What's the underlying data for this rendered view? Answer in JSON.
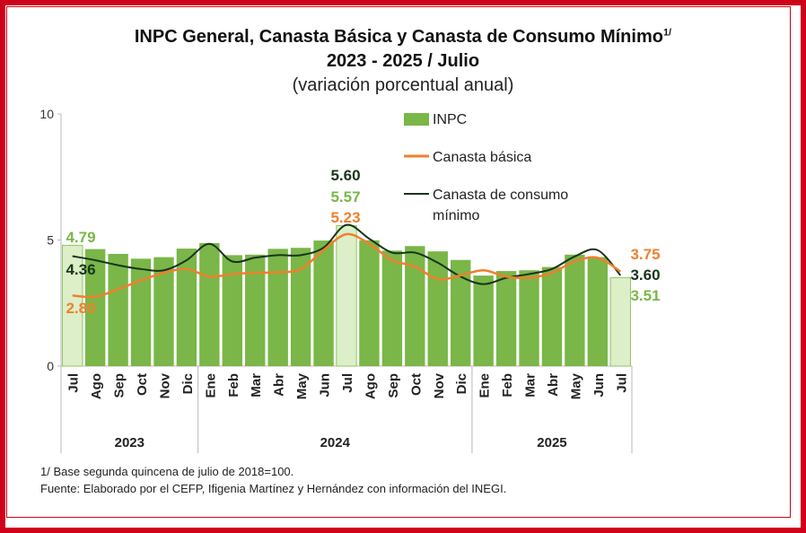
{
  "title": {
    "main": "INPC General, Canasta Básica  y Canasta de Consumo Mínimo",
    "superscript": "1/",
    "period": "2023 - 2025 / Julio",
    "subtitle": "(variación porcentual anual)"
  },
  "notes": {
    "base": "1/ Base segunda quincena de julio de 2018=100.",
    "source": "Fuente: Elaborado por el CEFP, Ifigenia Martínez y Hernández con información del INEGI."
  },
  "colors": {
    "frame": "#d0021b",
    "bar": "#7ab648",
    "bar_highlight": "#dcefc8",
    "canasta_basica": "#f07f2d",
    "canasta_consumo": "#17351a",
    "label_green": "#7ab648",
    "label_orange": "#f07f2d",
    "label_dark": "#17351a"
  },
  "chart_data": {
    "type": "bar",
    "categories": [
      "Jul",
      "Ago",
      "Sep",
      "Oct",
      "Nov",
      "Dic",
      "Ene",
      "Feb",
      "Mar",
      "Abr",
      "May",
      "Jun",
      "Jul",
      "Ago",
      "Sep",
      "Oct",
      "Nov",
      "Dic",
      "Ene",
      "Feb",
      "Mar",
      "Abr",
      "May",
      "Jun",
      "Jul"
    ],
    "years": [
      {
        "label": "2023",
        "start": 0,
        "end": 5
      },
      {
        "label": "2024",
        "start": 6,
        "end": 17
      },
      {
        "label": "2025",
        "start": 18,
        "end": 24
      }
    ],
    "ylim": [
      0,
      10
    ],
    "yticks": [
      "0",
      "5",
      "10"
    ],
    "series": [
      {
        "name": "INPC",
        "kind": "bar",
        "values": [
          4.79,
          4.64,
          4.45,
          4.26,
          4.32,
          4.66,
          4.88,
          4.4,
          4.42,
          4.65,
          4.69,
          4.98,
          5.57,
          4.99,
          4.58,
          4.76,
          4.55,
          4.21,
          3.59,
          3.77,
          3.8,
          3.93,
          4.42,
          4.32,
          3.51
        ]
      },
      {
        "name": "Canasta básica",
        "kind": "line",
        "values": [
          2.8,
          2.75,
          3.05,
          3.4,
          3.7,
          3.85,
          3.55,
          3.65,
          3.7,
          3.72,
          3.85,
          4.6,
          5.23,
          4.85,
          4.2,
          3.95,
          3.45,
          3.6,
          3.8,
          3.55,
          3.5,
          3.7,
          4.15,
          4.3,
          3.75
        ]
      },
      {
        "name": "Canasta de consumo\nmínimo",
        "kind": "line",
        "values": [
          4.36,
          4.2,
          4.0,
          3.85,
          3.8,
          4.2,
          4.85,
          4.15,
          4.3,
          4.4,
          4.4,
          4.7,
          5.6,
          5.05,
          4.5,
          4.5,
          4.1,
          3.55,
          3.25,
          3.5,
          3.65,
          3.85,
          4.35,
          4.6,
          3.6
        ]
      }
    ],
    "data_labels": [
      {
        "text": "4.79",
        "series": "INPC",
        "index": 0
      },
      {
        "text": "4.36",
        "series": "Canasta de consumo mínimo",
        "index": 0
      },
      {
        "text": "2.80",
        "series": "Canasta básica",
        "index": 0
      },
      {
        "text": "5.60",
        "series": "Canasta de consumo mínimo",
        "index": 12
      },
      {
        "text": "5.57",
        "series": "INPC",
        "index": 12
      },
      {
        "text": "5.23",
        "series": "Canasta básica",
        "index": 12
      },
      {
        "text": "3.75",
        "series": "Canasta básica",
        "index": 24
      },
      {
        "text": "3.60",
        "series": "Canasta de consumo mínimo",
        "index": 24
      },
      {
        "text": "3.51",
        "series": "INPC",
        "index": 24
      }
    ],
    "legend": {
      "position": "top-right",
      "inpc": "INPC",
      "basica": "Canasta básica",
      "consumo_line1": "Canasta de consumo",
      "consumo_line2": "mínimo"
    },
    "grid": false
  }
}
